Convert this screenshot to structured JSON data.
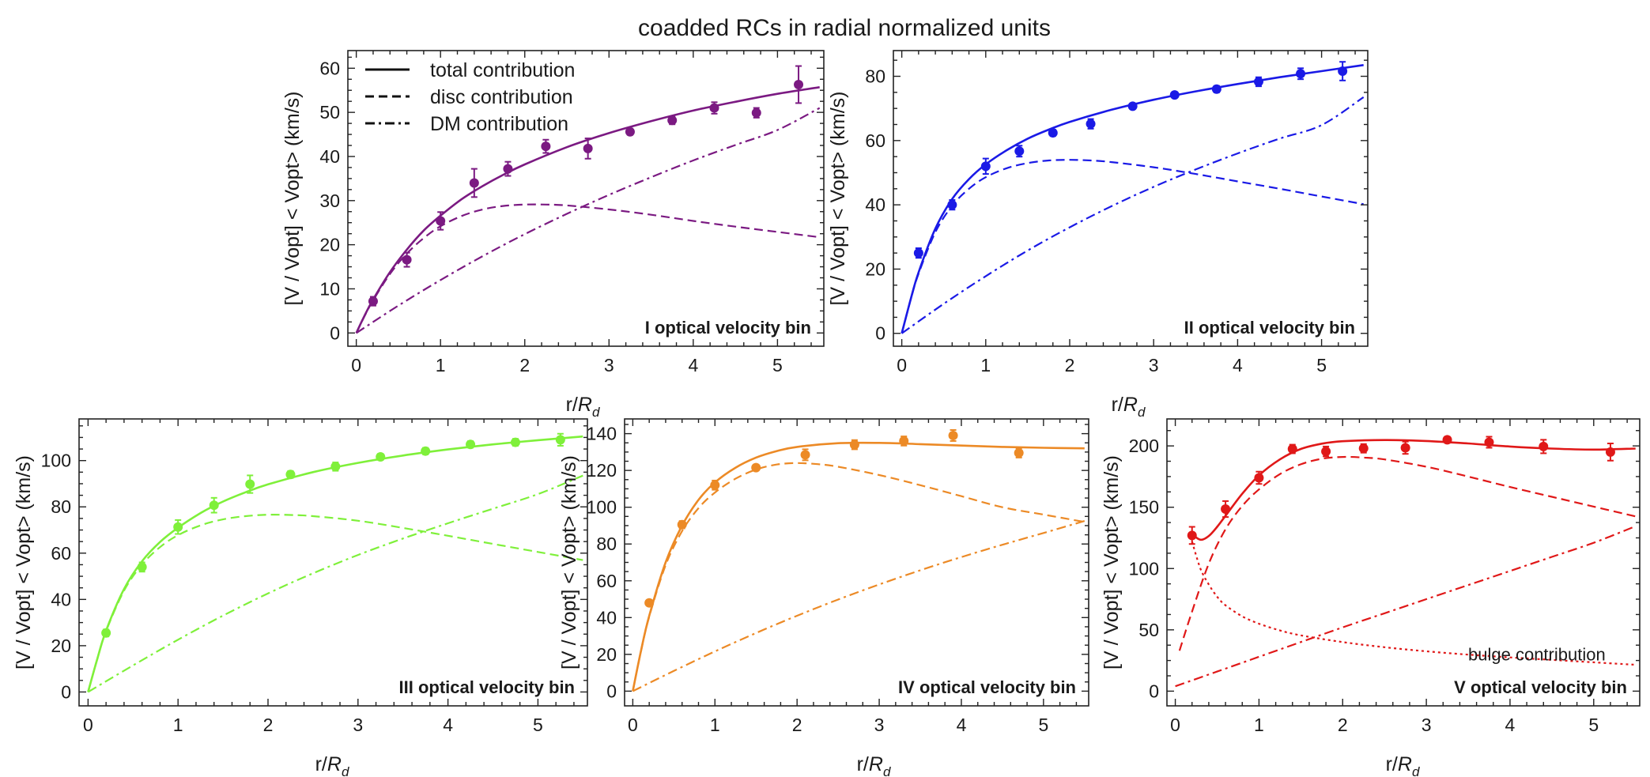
{
  "figure": {
    "title": "coadded RCs in radial normalized units"
  },
  "legend": {
    "items": [
      {
        "label": "total contribution",
        "style": "solid"
      },
      {
        "label": "disc contribution",
        "style": "dashed"
      },
      {
        "label": "DM contribution",
        "style": "dashdot"
      }
    ]
  },
  "chart_data": [
    {
      "type": "line",
      "panel": "I",
      "color": "#7b1a82",
      "bin_label": "I  optical velocity bin",
      "xlabel_main": "r/",
      "xlabel_sym": "R",
      "xlabel_sub": "d",
      "ylabel": "[V / Vopt] < Vopt> (km/s)",
      "xlim": [
        -0.1,
        5.55
      ],
      "ylim": [
        -3,
        64
      ],
      "xticks": [
        0,
        1,
        2,
        3,
        4,
        5
      ],
      "yticks": [
        0,
        10,
        20,
        30,
        40,
        50,
        60
      ],
      "has_legend": true,
      "points": {
        "x": [
          0.2,
          0.6,
          1.0,
          1.4,
          1.8,
          2.25,
          2.75,
          3.25,
          3.75,
          4.25,
          4.75,
          5.25
        ],
        "y": [
          7.2,
          16.6,
          25.4,
          34.0,
          37.2,
          42.3,
          41.8,
          45.6,
          48.2,
          51.0,
          49.9,
          56.3
        ],
        "err": [
          1.0,
          1.6,
          2.0,
          3.2,
          1.6,
          1.5,
          2.3,
          0.7,
          0.9,
          1.3,
          1.1,
          4.2
        ]
      },
      "series": [
        {
          "name": "total contribution",
          "style": "solid",
          "x": [
            0,
            0.1,
            0.2,
            0.4,
            0.6,
            0.8,
            1.0,
            1.25,
            1.5,
            1.75,
            2.0,
            2.5,
            3.0,
            3.5,
            4.0,
            4.5,
            5.0,
            5.5
          ],
          "y": [
            0,
            4.0,
            7.6,
            13.8,
            18.9,
            23.2,
            26.6,
            30.3,
            33.3,
            35.9,
            38.2,
            42.1,
            45.3,
            48.0,
            50.4,
            52.4,
            54.2,
            55.7
          ]
        },
        {
          "name": "disc contribution",
          "style": "dashed",
          "x": [
            0,
            0.1,
            0.2,
            0.4,
            0.6,
            0.8,
            1.0,
            1.25,
            1.5,
            1.75,
            2.0,
            2.25,
            2.5,
            3.0,
            3.5,
            4.0,
            4.5,
            5.0,
            5.5
          ],
          "y": [
            0,
            3.9,
            7.4,
            13.4,
            18.0,
            21.5,
            24.2,
            26.5,
            28.0,
            28.8,
            29.1,
            29.1,
            28.9,
            28.0,
            26.8,
            25.4,
            24.1,
            22.9,
            21.7
          ]
        },
        {
          "name": "DM contribution",
          "style": "dashdot",
          "x": [
            0,
            0.5,
            1.0,
            1.5,
            2.0,
            2.5,
            3.0,
            3.5,
            4.0,
            4.5,
            5.0,
            5.5
          ],
          "y": [
            0,
            6.2,
            12.0,
            17.4,
            22.4,
            27.0,
            31.3,
            35.3,
            39.1,
            42.6,
            46.0,
            51.0
          ]
        }
      ]
    },
    {
      "type": "line",
      "panel": "II",
      "color": "#1a1ae6",
      "bin_label": "II  optical velocity bin",
      "xlabel_main": "r/",
      "xlabel_sym": "R",
      "xlabel_sub": "d",
      "ylabel": "[V / Vopt] < Vopt> (km/s)",
      "xlim": [
        -0.1,
        5.55
      ],
      "ylim": [
        -4,
        88
      ],
      "xticks": [
        0,
        1,
        2,
        3,
        4,
        5
      ],
      "yticks": [
        0,
        20,
        40,
        60,
        80
      ],
      "has_legend": false,
      "points": {
        "x": [
          0.2,
          0.6,
          1.0,
          1.4,
          1.8,
          2.25,
          2.75,
          3.25,
          3.75,
          4.25,
          4.75,
          5.25
        ],
        "y": [
          25.0,
          40.0,
          52.0,
          56.7,
          62.4,
          65.2,
          70.7,
          74.2,
          76.0,
          78.3,
          80.8,
          81.6
        ],
        "err": [
          1.5,
          1.5,
          2.4,
          1.7,
          1.0,
          1.5,
          0.8,
          0.8,
          1.0,
          1.4,
          1.7,
          2.9
        ]
      },
      "series": [
        {
          "name": "total contribution",
          "style": "solid",
          "x": [
            0,
            0.1,
            0.2,
            0.4,
            0.6,
            0.8,
            1.0,
            1.25,
            1.5,
            1.75,
            2.0,
            2.5,
            3.0,
            3.5,
            4.0,
            4.5,
            5.0,
            5.5
          ],
          "y": [
            0,
            10.0,
            19.0,
            32.6,
            41.8,
            48.0,
            52.6,
            57.0,
            60.6,
            63.4,
            65.8,
            69.6,
            72.7,
            75.3,
            77.6,
            79.7,
            81.6,
            83.5
          ]
        },
        {
          "name": "disc contribution",
          "style": "dashed",
          "x": [
            0,
            0.1,
            0.2,
            0.4,
            0.6,
            0.8,
            1.0,
            1.25,
            1.5,
            1.75,
            2.0,
            2.25,
            2.5,
            3.0,
            3.5,
            4.0,
            4.5,
            5.0,
            5.5
          ],
          "y": [
            0,
            9.9,
            18.6,
            31.5,
            39.7,
            45.0,
            48.6,
            51.4,
            53.0,
            53.8,
            54.0,
            53.8,
            53.3,
            51.7,
            49.6,
            47.3,
            45.0,
            42.6,
            40.2
          ]
        },
        {
          "name": "DM contribution",
          "style": "dashdot",
          "x": [
            0,
            0.5,
            1.0,
            1.5,
            2.0,
            2.5,
            3.0,
            3.5,
            4.0,
            4.5,
            5.0,
            5.5
          ],
          "y": [
            0,
            9.2,
            17.8,
            25.8,
            33.0,
            39.6,
            45.6,
            51.0,
            56.0,
            60.6,
            64.8,
            73.5
          ]
        }
      ]
    },
    {
      "type": "line",
      "panel": "III",
      "color": "#7ff03a",
      "bin_label": "III  optical velocity bin",
      "xlabel_main": "r/",
      "xlabel_sym": "R",
      "xlabel_sub": "d",
      "ylabel": "[V / Vopt] < Vopt> (km/s)",
      "xlim": [
        -0.1,
        5.55
      ],
      "ylim": [
        -6,
        118
      ],
      "xticks": [
        0,
        1,
        2,
        3,
        4,
        5
      ],
      "yticks": [
        0,
        20,
        40,
        60,
        80,
        100
      ],
      "has_legend": false,
      "points": {
        "x": [
          0.2,
          0.6,
          1.0,
          1.4,
          1.8,
          2.25,
          2.75,
          3.25,
          3.75,
          4.25,
          4.75,
          5.25
        ],
        "y": [
          25.5,
          54.0,
          71.3,
          80.7,
          89.8,
          94.0,
          97.4,
          101.6,
          104.1,
          107.0,
          107.9,
          109.0
        ],
        "err": [
          1.5,
          2.0,
          3.0,
          3.2,
          3.8,
          1.5,
          1.8,
          1.3,
          1.4,
          1.4,
          1.5,
          2.6
        ]
      },
      "series": [
        {
          "name": "total contribution",
          "style": "solid",
          "x": [
            0,
            0.1,
            0.2,
            0.4,
            0.6,
            0.8,
            1.0,
            1.25,
            1.5,
            1.75,
            2.0,
            2.5,
            3.0,
            3.5,
            4.0,
            4.5,
            5.0,
            5.5
          ],
          "y": [
            0,
            14.0,
            26.5,
            44.5,
            56.5,
            64.8,
            71.0,
            77.3,
            82.3,
            86.3,
            89.7,
            95.0,
            99.0,
            102.2,
            104.8,
            107.0,
            108.8,
            110.4
          ]
        },
        {
          "name": "disc contribution",
          "style": "dashed",
          "x": [
            0,
            0.1,
            0.2,
            0.4,
            0.6,
            0.8,
            1.0,
            1.25,
            1.5,
            1.75,
            2.0,
            2.25,
            2.5,
            3.0,
            3.5,
            4.0,
            4.5,
            5.0,
            5.5
          ],
          "y": [
            0,
            13.9,
            26.2,
            43.8,
            55.1,
            62.6,
            67.8,
            72.0,
            74.6,
            76.0,
            76.6,
            76.5,
            76.0,
            74.0,
            70.9,
            67.5,
            64.0,
            60.5,
            57.0
          ]
        },
        {
          "name": "DM contribution",
          "style": "dashdot",
          "x": [
            0,
            0.5,
            1.0,
            1.5,
            2.0,
            2.5,
            3.0,
            3.5,
            4.0,
            4.5,
            5.0,
            5.5
          ],
          "y": [
            0,
            11.5,
            22.6,
            33.0,
            42.6,
            51.3,
            59.2,
            66.3,
            72.9,
            79.2,
            85.5,
            93.5
          ]
        }
      ]
    },
    {
      "type": "line",
      "panel": "IV",
      "color": "#ec8a26",
      "bin_label": "IV  optical velocity bin",
      "xlabel_main": "r/",
      "xlabel_sym": "R",
      "xlabel_sub": "d",
      "ylabel": "[V / Vopt] < Vopt> (km/s)",
      "xlim": [
        -0.1,
        5.55
      ],
      "ylim": [
        -8,
        148
      ],
      "xticks": [
        0,
        1,
        2,
        3,
        4,
        5
      ],
      "yticks": [
        0,
        20,
        40,
        60,
        80,
        100,
        120,
        140
      ],
      "has_legend": false,
      "points": {
        "x": [
          0.2,
          0.6,
          1.0,
          1.5,
          2.1,
          2.7,
          3.3,
          3.9,
          4.7
        ],
        "y": [
          48.0,
          90.5,
          112.0,
          121.5,
          128.5,
          134.0,
          136.0,
          139.0,
          129.5
        ],
        "err": [
          1.5,
          2.0,
          2.5,
          1.5,
          3.0,
          2.5,
          2.5,
          3.0,
          2.5
        ]
      },
      "series": [
        {
          "name": "total contribution",
          "style": "solid",
          "x": [
            0,
            0.1,
            0.2,
            0.4,
            0.6,
            0.8,
            1.0,
            1.25,
            1.5,
            1.75,
            2.0,
            2.5,
            3.0,
            3.5,
            4.0,
            4.5,
            5.0,
            5.5
          ],
          "y": [
            0,
            22.0,
            41.0,
            70.0,
            90.0,
            104.0,
            113.5,
            121.5,
            127.0,
            130.5,
            132.8,
            134.8,
            135.0,
            134.3,
            133.5,
            132.8,
            132.3,
            132.0
          ]
        },
        {
          "name": "disc contribution",
          "style": "dashed",
          "x": [
            0,
            0.1,
            0.2,
            0.4,
            0.6,
            0.8,
            1.0,
            1.25,
            1.5,
            1.75,
            2.0,
            2.25,
            2.5,
            3.0,
            3.5,
            4.0,
            4.5,
            5.0,
            5.5
          ],
          "y": [
            0,
            21.8,
            40.5,
            68.5,
            87.0,
            99.5,
            108.0,
            115.5,
            120.5,
            123.2,
            124.0,
            123.4,
            122.0,
            117.5,
            112.0,
            106.0,
            100.0,
            96.0,
            92.0
          ]
        },
        {
          "name": "DM contribution",
          "style": "dashdot",
          "x": [
            0,
            0.5,
            1.0,
            1.5,
            2.0,
            2.5,
            3.0,
            3.5,
            4.0,
            4.5,
            5.0,
            5.5
          ],
          "y": [
            0,
            11.0,
            21.6,
            31.6,
            41.0,
            49.8,
            58.0,
            65.7,
            72.9,
            79.6,
            86.0,
            92.5
          ]
        }
      ]
    },
    {
      "type": "line",
      "panel": "V",
      "color": "#e01818",
      "bin_label": "V  optical velocity bin",
      "xlabel_main": "r/",
      "xlabel_sym": "R",
      "xlabel_sub": "d",
      "ylabel": "[V / Vopt] < Vopt> (km/s)",
      "xlim": [
        -0.1,
        5.55
      ],
      "ylim": [
        -12,
        222
      ],
      "xticks": [
        0,
        1,
        2,
        3,
        4,
        5
      ],
      "yticks": [
        0,
        50,
        100,
        150,
        200
      ],
      "has_legend": false,
      "annotation": "bulge contribution",
      "points": {
        "x": [
          0.2,
          0.6,
          1.0,
          1.4,
          1.8,
          2.25,
          2.75,
          3.25,
          3.75,
          4.4,
          5.2
        ],
        "y": [
          127.0,
          148.5,
          174.0,
          197.5,
          195.5,
          198.0,
          198.5,
          205.0,
          203.0,
          199.5,
          195.0
        ],
        "err": [
          7.0,
          6.5,
          5.0,
          3.5,
          4.0,
          3.5,
          5.0,
          2.5,
          4.5,
          5.5,
          7.0
        ]
      },
      "series": [
        {
          "name": "total contribution",
          "style": "solid",
          "x": [
            0.2,
            0.3,
            0.4,
            0.5,
            0.6,
            0.8,
            1.0,
            1.25,
            1.5,
            1.75,
            2.0,
            2.5,
            3.0,
            3.5,
            4.0,
            4.5,
            5.0,
            5.5
          ],
          "y": [
            128.0,
            123.5,
            126.5,
            134.0,
            143.0,
            161.0,
            176.0,
            189.0,
            197.5,
            201.8,
            203.8,
            204.8,
            204.0,
            202.0,
            199.5,
            197.8,
            197.0,
            197.8
          ]
        },
        {
          "name": "disc contribution",
          "style": "dashed",
          "x": [
            0.05,
            0.2,
            0.4,
            0.6,
            0.8,
            1.0,
            1.25,
            1.5,
            1.75,
            2.0,
            2.25,
            2.5,
            3.0,
            3.5,
            4.0,
            4.5,
            5.0,
            5.5
          ],
          "y": [
            33.0,
            65.0,
            104.0,
            132.0,
            151.0,
            164.5,
            177.0,
            185.0,
            189.5,
            191.0,
            190.5,
            189.0,
            183.0,
            175.0,
            166.5,
            158.5,
            150.5,
            142.5
          ]
        },
        {
          "name": "DM contribution",
          "style": "dashdot",
          "x": [
            0,
            0.5,
            1.0,
            1.5,
            2.0,
            2.5,
            3.0,
            3.5,
            4.0,
            4.5,
            5.0,
            5.5
          ],
          "y": [
            4.0,
            16.0,
            28.0,
            40.0,
            52.0,
            63.5,
            75.0,
            86.5,
            98.0,
            109.5,
            121.0,
            134.5
          ]
        },
        {
          "name": "bulge contribution",
          "style": "dotted",
          "x": [
            0.2,
            0.3,
            0.4,
            0.5,
            0.6,
            0.8,
            1.0,
            1.25,
            1.5,
            2.0,
            2.5,
            3.0,
            3.5,
            4.0,
            4.5,
            5.0,
            5.5
          ],
          "y": [
            122.0,
            100.0,
            87.0,
            77.0,
            70.0,
            61.0,
            55.0,
            49.5,
            45.5,
            40.0,
            35.8,
            32.5,
            29.8,
            27.5,
            25.5,
            23.5,
            21.5
          ]
        }
      ]
    }
  ]
}
